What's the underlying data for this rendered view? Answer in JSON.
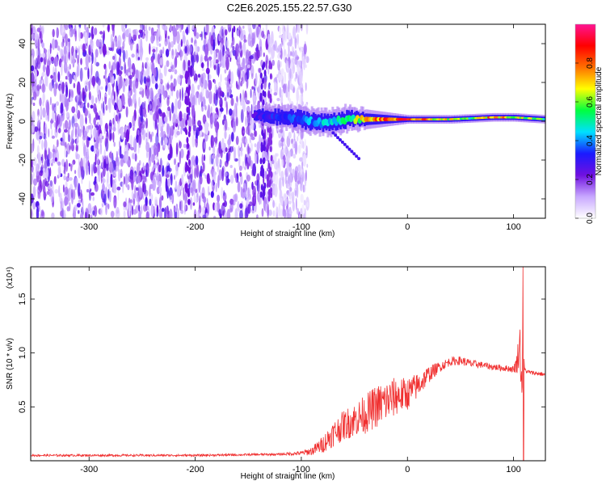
{
  "title": "C2E6.2025.155.22.57.G30",
  "chart_data": [
    {
      "type": "heatmap",
      "name": "spectrogram",
      "xlabel": "Height of straight line (km)",
      "ylabel": "Frequency (Hz)",
      "xlim": [
        -355,
        130
      ],
      "ylim": [
        -50,
        50
      ],
      "xticks": [
        -300,
        -200,
        -100,
        0,
        100
      ],
      "yticks": [
        -40,
        -20,
        0,
        20,
        40
      ],
      "noise_region_x": [
        -355,
        -100
      ],
      "signal_band": {
        "x_start": -145,
        "x_end": 130,
        "center_freq": [
          [
            -145,
            3
          ],
          [
            -120,
            2
          ],
          [
            -100,
            1
          ],
          [
            -80,
            -1
          ],
          [
            -60,
            1
          ],
          [
            -40,
            1
          ],
          [
            0,
            1
          ],
          [
            40,
            1
          ],
          [
            80,
            2
          ],
          [
            100,
            2
          ],
          [
            130,
            1
          ]
        ],
        "half_width_hz": [
          [
            -145,
            2
          ],
          [
            -100,
            3
          ],
          [
            -60,
            3
          ],
          [
            0,
            1
          ],
          [
            130,
            1
          ]
        ],
        "peak_amplitude": [
          [
            -145,
            0.3
          ],
          [
            -100,
            0.4
          ],
          [
            -60,
            0.55
          ],
          [
            -30,
            0.85
          ],
          [
            0,
            0.9
          ],
          [
            60,
            0.6
          ],
          [
            80,
            0.85
          ],
          [
            110,
            0.7
          ],
          [
            130,
            0.6
          ]
        ]
      },
      "colorbar": {
        "label": "Normalized spectral amplitude",
        "range": [
          0,
          1
        ],
        "ticks": [
          "0.0",
          "0.2",
          "0.4",
          "0.6",
          "0.8"
        ],
        "colors": [
          "#ffffff",
          "#c8a8ff",
          "#7010e0",
          "#1a1aff",
          "#00e0ff",
          "#00ff40",
          "#ffff00",
          "#ff7000",
          "#ff0000",
          "#ff1493"
        ]
      }
    },
    {
      "type": "line",
      "name": "snr",
      "xlabel": "Height of straight line (km)",
      "ylabel": "SNR (10 * v/v)",
      "y_multiplier": "(x10⁴)",
      "xlim": [
        -355,
        130
      ],
      "ylim": [
        0,
        1.8
      ],
      "xticks": [
        -300,
        -200,
        -100,
        0,
        100
      ],
      "yticks": [
        0.5,
        1.0,
        1.5
      ],
      "yticklabels": [
        "0.5",
        "1.0",
        "1.5"
      ],
      "color": "#f03030",
      "series": [
        {
          "x": [
            -355,
            -200,
            -120,
            -100,
            -90,
            -80,
            -70,
            -60,
            -50,
            -40,
            -30,
            -20,
            -10,
            0,
            10,
            20,
            30,
            40,
            50,
            60,
            70,
            80,
            90,
            100,
            103,
            106,
            108,
            109,
            110,
            112,
            115,
            130
          ],
          "values": [
            0.05,
            0.05,
            0.06,
            0.07,
            0.09,
            0.15,
            0.25,
            0.33,
            0.38,
            0.43,
            0.5,
            0.55,
            0.6,
            0.62,
            0.7,
            0.8,
            0.87,
            0.92,
            0.93,
            0.9,
            0.89,
            0.87,
            0.86,
            0.85,
            0.9,
            1.1,
            0.6,
            1.8,
            0.85,
            0.83,
            0.82,
            0.8
          ],
          "noise_amplitude": [
            0.01,
            0.01,
            0.01,
            0.02,
            0.04,
            0.08,
            0.12,
            0.14,
            0.16,
            0.18,
            0.2,
            0.2,
            0.18,
            0.15,
            0.12,
            0.08,
            0.05,
            0.04,
            0.04,
            0.04,
            0.03,
            0.03,
            0.03,
            0.03,
            0.1,
            0.2,
            0.2,
            0.0,
            0.03,
            0.02,
            0.02,
            0.02
          ]
        }
      ]
    }
  ]
}
